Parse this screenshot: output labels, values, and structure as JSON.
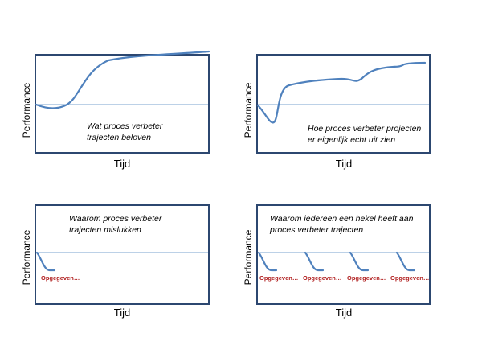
{
  "panels": [
    {
      "ylabel": "Performance",
      "xlabel": "Tijd",
      "caption": [
        "Wat proces verbeter",
        "trajecten beloven"
      ],
      "giveups": []
    },
    {
      "ylabel": "Performance",
      "xlabel": "Tijd",
      "caption": [
        "Hoe proces verbeter projecten",
        "er eigenlijk echt uit zien"
      ],
      "giveups": []
    },
    {
      "ylabel": "Performance",
      "xlabel": "Tijd",
      "caption": [
        "Waarom proces verbeter",
        "trajecten mislukken"
      ],
      "giveups": [
        "Opgegeven…"
      ]
    },
    {
      "ylabel": "Performance",
      "xlabel": "Tijd",
      "caption": [
        "Waarom iedereen een hekel heeft aan",
        "proces verbeter trajecten"
      ],
      "giveups": [
        "Opgegeven…",
        "Opgegeven…",
        "Opgegeven…",
        "Opgegeven…"
      ]
    }
  ],
  "colors": {
    "frame": "#2c4770",
    "curve": "#4f81bd",
    "baseline": "#7aa3cf",
    "giveup_text": "#b01e1e"
  }
}
